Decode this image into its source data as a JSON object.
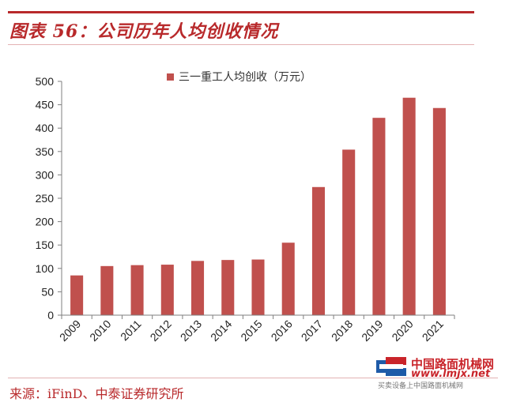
{
  "header": {
    "title": "图表 56：公司历年人均创收情况"
  },
  "footer": {
    "source": "来源：iFinD、中泰证券研究所"
  },
  "watermark": {
    "title": "中国路面机械网",
    "url": "www.lmjx.net",
    "subtitle": "买卖设备上中国路面机械网"
  },
  "colors": {
    "accent": "#b8292b",
    "bar": "#c0504d"
  },
  "chart_data": {
    "type": "bar",
    "categories": [
      "2009",
      "2010",
      "2011",
      "2012",
      "2013",
      "2014",
      "2015",
      "2016",
      "2017",
      "2018",
      "2019",
      "2020",
      "2021"
    ],
    "series": [
      {
        "name": "三一重工人均创收（万元）",
        "values": [
          85,
          105,
          107,
          108,
          116,
          118,
          119,
          155,
          274,
          354,
          422,
          465,
          443
        ]
      }
    ],
    "ylim": [
      0,
      500
    ],
    "yticks": [
      0,
      50,
      100,
      150,
      200,
      250,
      300,
      350,
      400,
      450,
      500
    ],
    "legend": "top-center",
    "grid": false,
    "xlabel": "",
    "ylabel": ""
  }
}
